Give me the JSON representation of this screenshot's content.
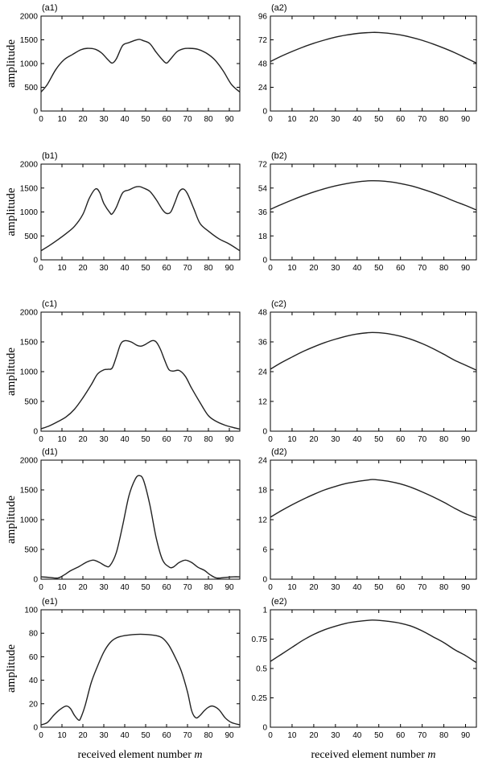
{
  "figure": {
    "x_axis_label": "received element number",
    "x_axis_var": "m"
  },
  "chart_data": [
    {
      "id": "a1",
      "title": "(a1)",
      "type": "line",
      "ylabel": "amplitude",
      "xlim": [
        0,
        95
      ],
      "ylim": [
        0,
        2000
      ],
      "xticks": [
        0,
        10,
        20,
        30,
        40,
        50,
        60,
        70,
        80,
        90
      ],
      "yticks": [
        0,
        500,
        1000,
        1500,
        2000
      ],
      "x": [
        0,
        3,
        7,
        11,
        15,
        19,
        22,
        26,
        29,
        32,
        34,
        36,
        39,
        42,
        45,
        47,
        49,
        52,
        55,
        58,
        60,
        62,
        65,
        68,
        71,
        75,
        79,
        83,
        87,
        91,
        95
      ],
      "y": [
        400,
        560,
        870,
        1080,
        1190,
        1290,
        1320,
        1300,
        1220,
        1080,
        1010,
        1100,
        1380,
        1440,
        1490,
        1510,
        1480,
        1420,
        1240,
        1080,
        1010,
        1100,
        1250,
        1310,
        1320,
        1300,
        1220,
        1080,
        850,
        560,
        400
      ]
    },
    {
      "id": "a2",
      "title": "(a2)",
      "type": "line",
      "xlim": [
        0,
        95
      ],
      "ylim": [
        0,
        96
      ],
      "xticks": [
        0,
        10,
        20,
        30,
        40,
        50,
        60,
        70,
        80,
        90
      ],
      "yticks": [
        0,
        24,
        48,
        72,
        96
      ],
      "x": [
        0,
        5,
        10,
        15,
        20,
        25,
        30,
        35,
        40,
        45,
        47,
        50,
        55,
        60,
        65,
        70,
        75,
        80,
        85,
        90,
        95
      ],
      "y": [
        50,
        55.4,
        60.2,
        64.6,
        68.5,
        71.8,
        74.7,
        76.8,
        78.4,
        79.3,
        79.5,
        79.4,
        78.5,
        76.9,
        74.5,
        71.5,
        67.8,
        63.6,
        59,
        53.8,
        48.5
      ]
    },
    {
      "id": "b1",
      "title": "(b1)",
      "type": "line",
      "ylabel": "amplitude",
      "xlim": [
        0,
        95
      ],
      "ylim": [
        0,
        2000
      ],
      "xticks": [
        0,
        10,
        20,
        30,
        40,
        50,
        60,
        70,
        80,
        90
      ],
      "yticks": [
        0,
        500,
        1000,
        1500,
        2000
      ],
      "x": [
        0,
        4,
        8,
        12,
        16,
        20,
        23,
        26,
        28,
        30,
        33,
        34,
        36,
        39,
        42,
        45,
        47,
        49,
        52,
        55,
        58,
        60,
        62,
        64,
        66,
        68,
        70,
        73,
        76,
        80,
        85,
        90,
        95
      ],
      "y": [
        190,
        300,
        420,
        550,
        700,
        950,
        1280,
        1480,
        1410,
        1180,
        980,
        960,
        1100,
        1400,
        1460,
        1520,
        1530,
        1500,
        1430,
        1260,
        1050,
        970,
        1000,
        1200,
        1420,
        1480,
        1380,
        1070,
        760,
        600,
        440,
        330,
        190
      ]
    },
    {
      "id": "b2",
      "title": "(b2)",
      "type": "line",
      "xlim": [
        0,
        95
      ],
      "ylim": [
        0,
        72
      ],
      "xticks": [
        0,
        10,
        20,
        30,
        40,
        50,
        60,
        70,
        80,
        90
      ],
      "yticks": [
        0,
        18,
        36,
        54,
        72
      ],
      "x": [
        0,
        5,
        10,
        15,
        20,
        25,
        30,
        35,
        40,
        45,
        47,
        50,
        55,
        60,
        65,
        70,
        75,
        80,
        85,
        90,
        95
      ],
      "y": [
        38,
        41.6,
        45,
        48.2,
        51,
        53.5,
        55.6,
        57.3,
        58.6,
        59.4,
        59.5,
        59.4,
        58.7,
        57.4,
        55.6,
        53.2,
        50.5,
        47.4,
        44,
        40.9,
        37.5
      ]
    },
    {
      "id": "c1",
      "title": "(c1)",
      "type": "line",
      "ylabel": "amplitude",
      "xlim": [
        0,
        95
      ],
      "ylim": [
        0,
        2000
      ],
      "xticks": [
        0,
        10,
        20,
        30,
        40,
        50,
        60,
        70,
        80,
        90
      ],
      "yticks": [
        0,
        500,
        1000,
        1500,
        2000
      ],
      "x": [
        0,
        4,
        8,
        12,
        16,
        20,
        24,
        27,
        30,
        32,
        34,
        36,
        38,
        40,
        43,
        46,
        48,
        50,
        53,
        55,
        57,
        59,
        61,
        63,
        66,
        69,
        72,
        76,
        80,
        84,
        88,
        92,
        95
      ],
      "y": [
        40,
        90,
        160,
        240,
        370,
        560,
        780,
        960,
        1030,
        1040,
        1060,
        1250,
        1460,
        1520,
        1500,
        1440,
        1430,
        1460,
        1520,
        1500,
        1380,
        1200,
        1040,
        1010,
        1020,
        920,
        720,
        480,
        260,
        160,
        100,
        60,
        35
      ]
    },
    {
      "id": "c2",
      "title": "(c2)",
      "type": "line",
      "xlim": [
        0,
        95
      ],
      "ylim": [
        0,
        48
      ],
      "xticks": [
        0,
        10,
        20,
        30,
        40,
        50,
        60,
        70,
        80,
        90
      ],
      "yticks": [
        0,
        12,
        24,
        36,
        48
      ],
      "x": [
        0,
        5,
        10,
        15,
        20,
        25,
        30,
        35,
        40,
        45,
        47,
        50,
        55,
        60,
        65,
        70,
        75,
        80,
        85,
        90,
        95
      ],
      "y": [
        25,
        27.6,
        29.9,
        32.1,
        34,
        35.7,
        37.1,
        38.3,
        39.2,
        39.7,
        39.8,
        39.7,
        39.2,
        38.3,
        37,
        35.3,
        33.3,
        31,
        28.6,
        26.6,
        24.6
      ]
    },
    {
      "id": "d1",
      "title": "(d1)",
      "type": "line",
      "ylabel": "amplitude",
      "xlim": [
        0,
        95
      ],
      "ylim": [
        0,
        2000
      ],
      "xticks": [
        0,
        10,
        20,
        30,
        40,
        50,
        60,
        70,
        80,
        90
      ],
      "yticks": [
        0,
        500,
        1000,
        1500,
        2000
      ],
      "x": [
        0,
        4,
        8,
        11,
        14,
        18,
        22,
        25,
        28,
        31,
        33,
        36,
        39,
        42,
        45,
        47,
        49,
        52,
        55,
        58,
        61,
        63,
        66,
        69,
        72,
        75,
        78,
        81,
        84,
        88,
        92,
        95
      ],
      "y": [
        40,
        30,
        20,
        70,
        140,
        210,
        290,
        320,
        280,
        220,
        230,
        450,
        900,
        1400,
        1680,
        1740,
        1660,
        1250,
        700,
        330,
        210,
        200,
        280,
        320,
        280,
        200,
        150,
        70,
        20,
        30,
        40,
        40
      ]
    },
    {
      "id": "d2",
      "title": "(d2)",
      "type": "line",
      "xlim": [
        0,
        95
      ],
      "ylim": [
        0,
        24
      ],
      "xticks": [
        0,
        10,
        20,
        30,
        40,
        50,
        60,
        70,
        80,
        90
      ],
      "yticks": [
        0,
        6,
        12,
        18,
        24
      ],
      "x": [
        0,
        5,
        10,
        15,
        20,
        25,
        30,
        35,
        40,
        45,
        47,
        50,
        55,
        60,
        65,
        70,
        75,
        80,
        85,
        90,
        95
      ],
      "y": [
        12.5,
        13.8,
        15,
        16.1,
        17.1,
        18,
        18.7,
        19.3,
        19.7,
        20,
        20.1,
        20,
        19.7,
        19.2,
        18.5,
        17.6,
        16.6,
        15.5,
        14.3,
        13.2,
        12.4
      ]
    },
    {
      "id": "e1",
      "title": "(e1)",
      "type": "line",
      "ylabel": "amplitude",
      "xlim": [
        0,
        95
      ],
      "ylim": [
        0,
        100
      ],
      "xticks": [
        0,
        10,
        20,
        30,
        40,
        50,
        60,
        70,
        80,
        90
      ],
      "yticks": [
        0,
        20,
        40,
        60,
        80,
        100
      ],
      "x": [
        0,
        3,
        6,
        9,
        12,
        14,
        16,
        18,
        19,
        21,
        24,
        27,
        30,
        33,
        36,
        40,
        45,
        50,
        55,
        58,
        61,
        64,
        67,
        70,
        72,
        74,
        76,
        78,
        80,
        82,
        85,
        88,
        91,
        95
      ],
      "y": [
        2,
        4,
        10,
        15,
        18,
        16,
        10,
        6,
        8,
        18,
        38,
        52,
        64,
        72,
        76,
        78,
        79,
        79,
        78,
        76,
        70,
        60,
        48,
        30,
        14,
        8,
        10,
        14,
        17,
        18,
        15,
        8,
        4,
        2
      ]
    },
    {
      "id": "e2",
      "title": "(e2)",
      "type": "line",
      "xlim": [
        0,
        95
      ],
      "ylim": [
        0,
        1
      ],
      "xticks": [
        0,
        10,
        20,
        30,
        40,
        50,
        60,
        70,
        80,
        90
      ],
      "yticks": [
        0,
        0.25,
        0.5,
        0.75,
        1
      ],
      "ytick_labels": [
        "0",
        "0.25",
        "0.5",
        "0.75",
        "1"
      ],
      "x": [
        0,
        5,
        10,
        15,
        20,
        25,
        30,
        35,
        40,
        45,
        47,
        50,
        55,
        60,
        65,
        70,
        75,
        80,
        85,
        90,
        95
      ],
      "y": [
        0.56,
        0.62,
        0.68,
        0.74,
        0.79,
        0.83,
        0.86,
        0.885,
        0.9,
        0.91,
        0.912,
        0.91,
        0.9,
        0.885,
        0.86,
        0.82,
        0.77,
        0.72,
        0.66,
        0.61,
        0.55
      ]
    }
  ]
}
